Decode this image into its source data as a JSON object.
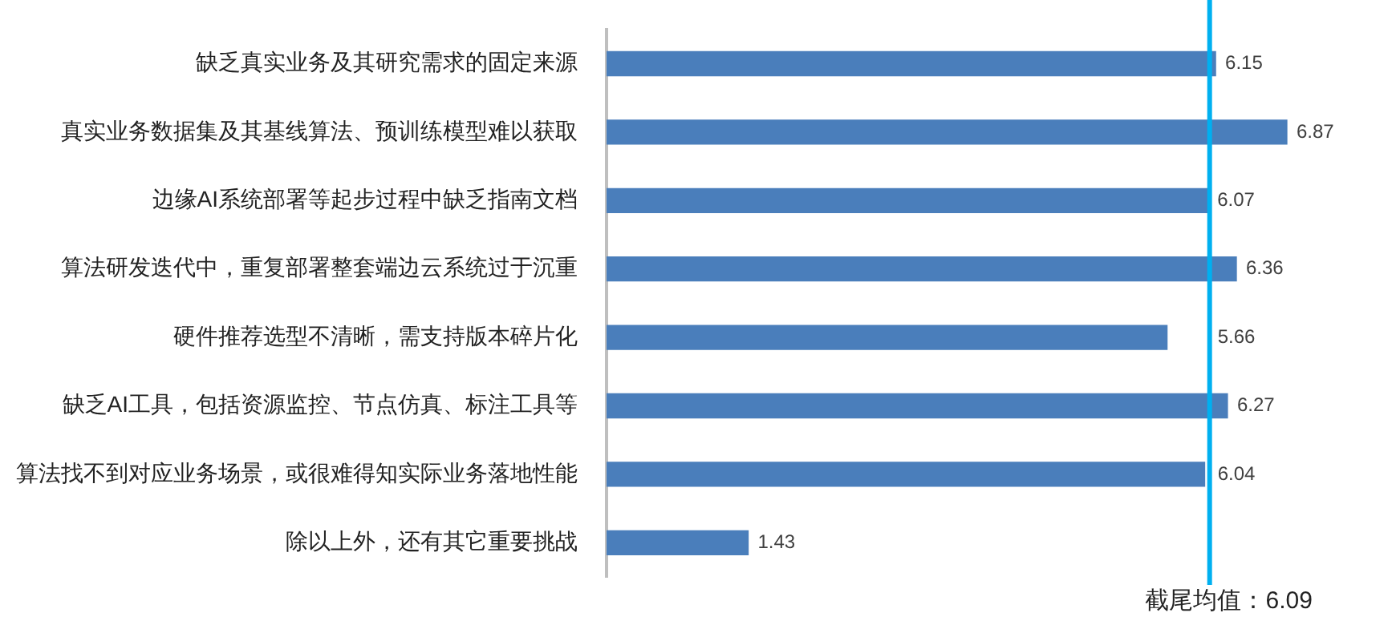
{
  "chart_data": {
    "type": "bar",
    "orientation": "horizontal",
    "categories": [
      "缺乏真实业务及其研究需求的固定来源",
      "真实业务数据集及其基线算法、预训练模型难以获取",
      "边缘AI系统部署等起步过程中缺乏指南文档",
      "算法研发迭代中，重复部署整套端边云系统过于沉重",
      "硬件推荐选型不清晰，需支持版本碎片化",
      "缺乏AI工具，包括资源监控、节点仿真、标注工具等",
      "算法找不到对应业务场景，或很难得知实际业务落地性能",
      "除以上外，还有其它重要挑战"
    ],
    "values": [
      6.15,
      6.87,
      6.07,
      6.36,
      5.66,
      6.27,
      6.04,
      1.43
    ],
    "color": "#4a7ebb",
    "tick_labels": "y",
    "data_labels": true,
    "ref_lines": [
      {
        "axis": "x",
        "value": 6.09,
        "label": "截尾均值：6.09",
        "color": "#00b0f0"
      }
    ]
  }
}
